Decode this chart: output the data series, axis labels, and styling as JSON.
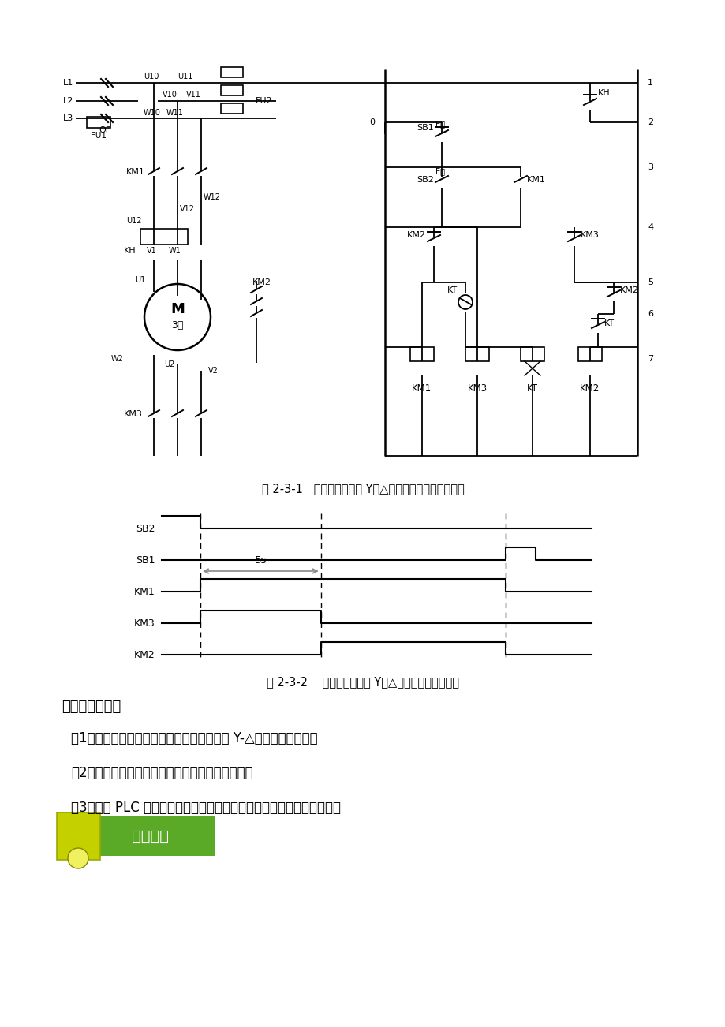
{
  "bg_color": "#ffffff",
  "circuit_caption": "图 2-3-1   三相异步电动机 Y－△降压启动的继电控制电路",
  "timing_caption": "图 2-3-2    三相异步电动机 Y－△降压启动控制时序图",
  "task_title": "任务控制要求：",
  "task_items": [
    "（1）能够用按钮控制三相交流异步电动机的 Y-△降压启动和停止。",
    "（2）具有短路保护和过载保护等必要的保护措施。",
    "（3）利用 PLC 基本指令中的主控指令或多重输出指令来实现上述控制。"
  ],
  "banner_text": "任务准备",
  "t1": 0.09,
  "t2": 0.37,
  "t3": 0.8,
  "t4": 0.87
}
